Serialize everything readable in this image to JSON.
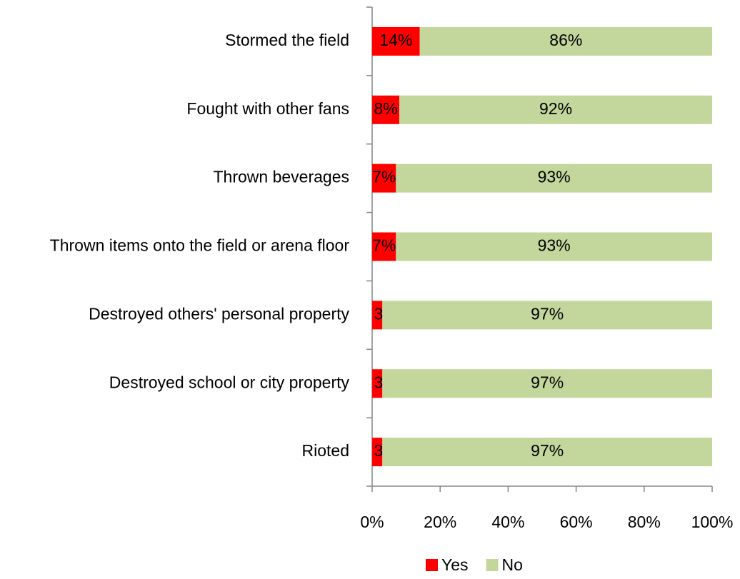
{
  "chart_data": {
    "type": "stacked_barh",
    "categories": [
      "Stormed the field",
      "Fought with other fans",
      "Thrown beverages",
      "Thrown items onto the field or arena floor",
      "Destroyed others' personal property",
      "Destroyed school or city property",
      "Rioted"
    ],
    "series": [
      {
        "name": "Yes",
        "color": "#ff0000",
        "values": [
          14,
          8,
          7,
          7,
          3,
          3,
          3
        ],
        "value_labels": [
          "14%",
          "8%",
          "7%",
          "7%",
          "3%",
          "3%",
          "3%"
        ]
      },
      {
        "name": "No",
        "color": "#c3d69b",
        "values": [
          86,
          92,
          93,
          93,
          97,
          97,
          97
        ],
        "value_labels": [
          "86%",
          "92%",
          "93%",
          "93%",
          "97%",
          "97%",
          "97%"
        ]
      }
    ],
    "xlim": [
      0,
      100
    ],
    "xticks": [
      {
        "value": 0,
        "label": "0%"
      },
      {
        "value": 20,
        "label": "20%"
      },
      {
        "value": 40,
        "label": "40%"
      },
      {
        "value": 60,
        "label": "60%"
      },
      {
        "value": 80,
        "label": "80%"
      },
      {
        "value": 100,
        "label": "100%"
      }
    ],
    "legend": "bottom"
  }
}
